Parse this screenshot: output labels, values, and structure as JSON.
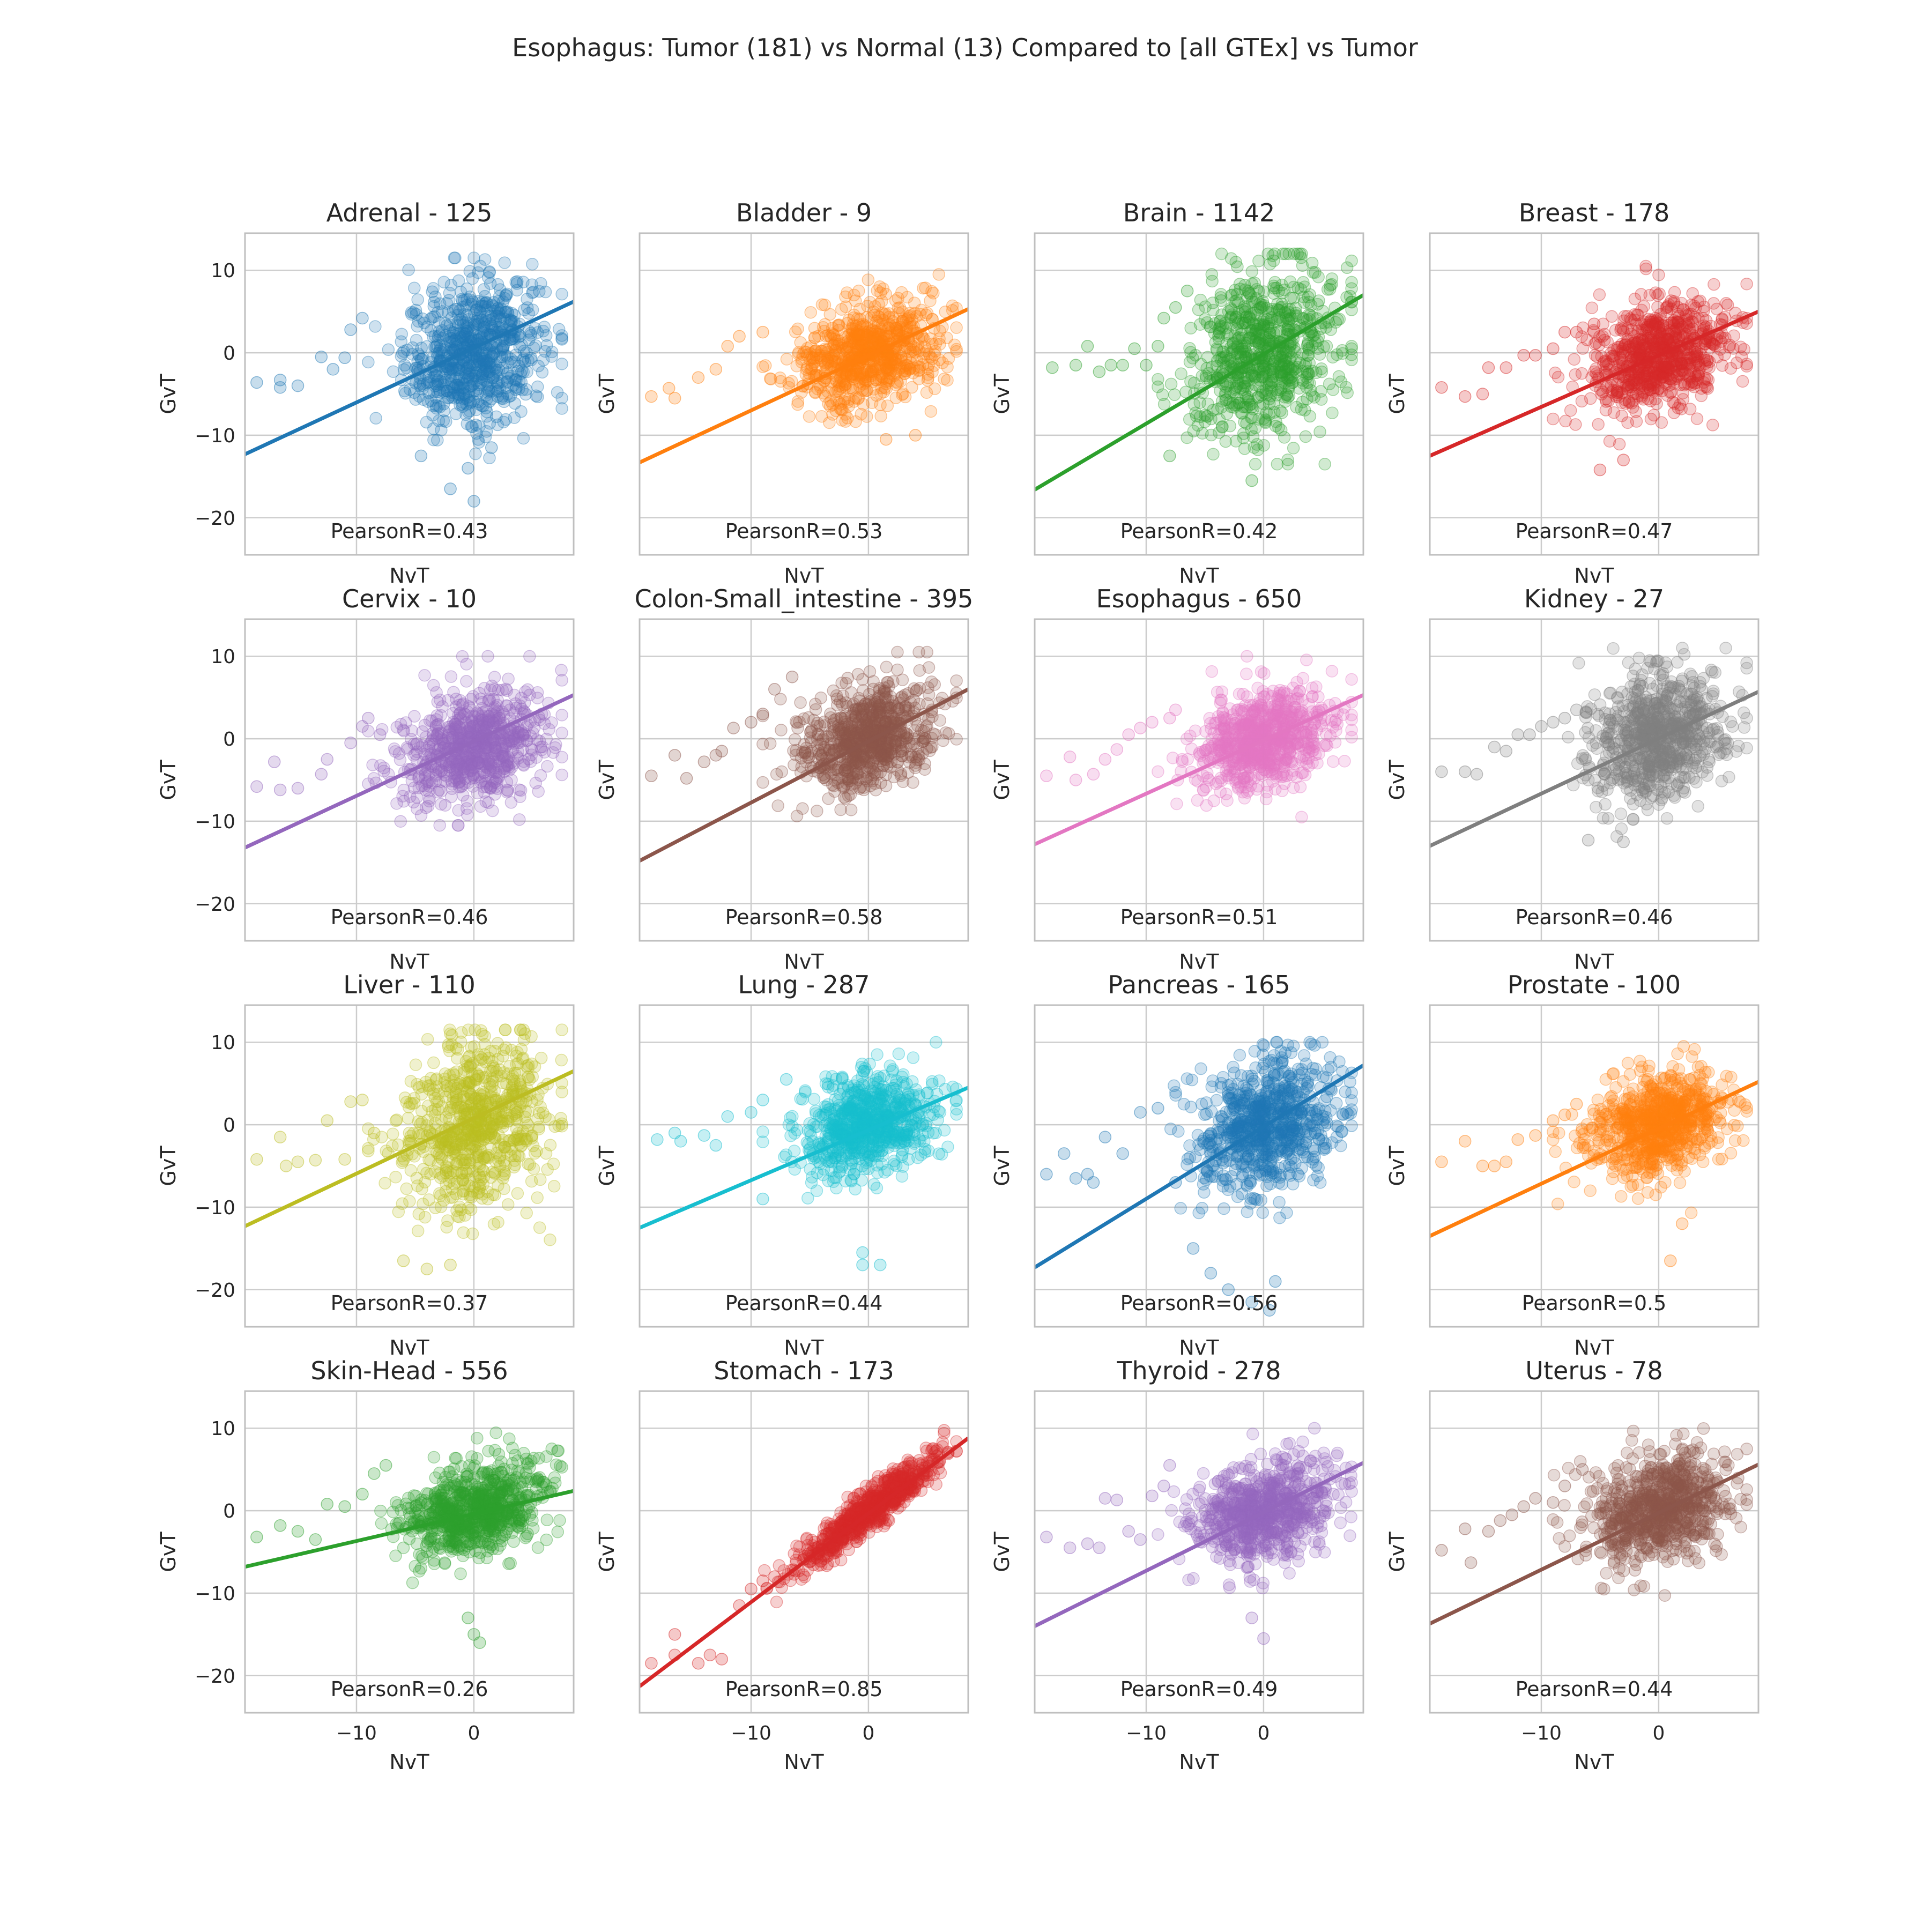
{
  "figure": {
    "title": "Esophagus: Tumor (181) vs Normal (13) Compared to [all GTEx] vs Tumor"
  },
  "axes_common": {
    "xlabel": "NvT",
    "ylabel": "GvT",
    "xlim": [
      -19.5,
      8.5
    ],
    "ylim": [
      -24.5,
      14.5
    ],
    "xticks": [
      -10,
      0
    ],
    "yticks": [
      -20,
      -10,
      0,
      10
    ],
    "grid": true
  },
  "chart_data": [
    {
      "type": "scatter",
      "title": "Adrenal - 125",
      "annotation": "PearsonR=0.43",
      "color": "#1f77b4",
      "regression_line": {
        "x": [
          -19.5,
          8.5
        ],
        "y": [
          -12.3,
          6.2
        ]
      },
      "cloud": {
        "cx": 0,
        "cy": 0,
        "sx": 2.9,
        "sy": 4.3,
        "ylow": -14,
        "yhigh": 11.5
      },
      "outliers": [
        [
          -18.5,
          -3.6
        ],
        [
          -16.5,
          -4.2
        ],
        [
          -16.5,
          -3.3
        ],
        [
          -15,
          -4
        ],
        [
          -13,
          -0.5
        ],
        [
          -11,
          -0.6
        ],
        [
          -12,
          -2
        ],
        [
          -10.5,
          2.8
        ],
        [
          -9.5,
          4.2
        ],
        [
          -4.5,
          -12.5
        ],
        [
          -2,
          -16.5
        ],
        [
          0,
          -18
        ],
        [
          -0.5,
          -14
        ],
        [
          1.5,
          -11.5
        ]
      ]
    },
    {
      "type": "scatter",
      "title": "Bladder - 9",
      "annotation": "PearsonR=0.53",
      "color": "#ff7f0e",
      "regression_line": {
        "x": [
          -19.5,
          8.5
        ],
        "y": [
          -13.3,
          5.3
        ]
      },
      "cloud": {
        "cx": 0,
        "cy": 0,
        "sx": 3.0,
        "sy": 3.0,
        "ylow": -9,
        "yhigh": 9.5
      },
      "outliers": [
        [
          -18.5,
          -5.3
        ],
        [
          -17,
          -4.3
        ],
        [
          -16.5,
          -5.5
        ],
        [
          -14.5,
          -3
        ],
        [
          -13,
          -2
        ],
        [
          -12,
          0.8
        ],
        [
          -11,
          2
        ],
        [
          -9,
          2.5
        ],
        [
          1.5,
          -10.5
        ],
        [
          4,
          -10
        ]
      ]
    },
    {
      "type": "scatter",
      "title": "Brain - 1142",
      "annotation": "PearsonR=0.42",
      "color": "#2ca02c",
      "regression_line": {
        "x": [
          -19.5,
          8.5
        ],
        "y": [
          -16.6,
          7.0
        ]
      },
      "cloud": {
        "cx": 0,
        "cy": 0,
        "sx": 3.0,
        "sy": 5.0,
        "ylow": -13.5,
        "yhigh": 12
      },
      "outliers": [
        [
          -18,
          -1.8
        ],
        [
          -16,
          -1.5
        ],
        [
          -15,
          0.8
        ],
        [
          -14,
          -2.3
        ],
        [
          -13,
          -1.5
        ],
        [
          -12,
          -1.5
        ],
        [
          -11,
          0.5
        ],
        [
          -10,
          -1.5
        ],
        [
          -9,
          0.8
        ],
        [
          -8.5,
          4.2
        ],
        [
          -7.5,
          5.5
        ],
        [
          -6.5,
          7.5
        ],
        [
          -8,
          -12.5
        ],
        [
          -1,
          -15.5
        ]
      ]
    },
    {
      "type": "scatter",
      "title": "Breast - 178",
      "annotation": "PearsonR=0.47",
      "color": "#d62728",
      "regression_line": {
        "x": [
          -19.5,
          8.5
        ],
        "y": [
          -12.5,
          5.0
        ]
      },
      "cloud": {
        "cx": 0,
        "cy": -0.5,
        "sx": 3.0,
        "sy": 3.3,
        "ylow": -12,
        "yhigh": 10.5
      },
      "outliers": [
        [
          -18.5,
          -4.2
        ],
        [
          -16.5,
          -5.3
        ],
        [
          -15,
          -5
        ],
        [
          -14.5,
          -1.8
        ],
        [
          -13,
          -1.8
        ],
        [
          -11.5,
          -0.3
        ],
        [
          -10.5,
          -0.3
        ],
        [
          -9,
          0.5
        ],
        [
          -8,
          2.5
        ],
        [
          -7,
          2.5
        ],
        [
          -5.5,
          3.5
        ],
        [
          -5,
          -14.2
        ],
        [
          -3,
          -13
        ]
      ]
    },
    {
      "type": "scatter",
      "title": "Cervix - 10",
      "annotation": "PearsonR=0.46",
      "color": "#9467bd",
      "regression_line": {
        "x": [
          -19.5,
          8.5
        ],
        "y": [
          -13.2,
          5.3
        ]
      },
      "cloud": {
        "cx": 0,
        "cy": -1.0,
        "sx": 3.0,
        "sy": 3.3,
        "ylow": -10.5,
        "yhigh": 10
      },
      "outliers": [
        [
          -18.5,
          -5.8
        ],
        [
          -17,
          -2.8
        ],
        [
          -16.5,
          -6.2
        ],
        [
          -15,
          -6
        ],
        [
          -13,
          -4.3
        ],
        [
          -12.5,
          -2.5
        ],
        [
          -10.5,
          -0.5
        ],
        [
          -9.5,
          1.5
        ],
        [
          -9,
          2.5
        ],
        [
          -8,
          0.5
        ]
      ]
    },
    {
      "type": "scatter",
      "title": "Colon-Small_intestine - 395",
      "annotation": "PearsonR=0.58",
      "color": "#8c564b",
      "regression_line": {
        "x": [
          -19.5,
          8.5
        ],
        "y": [
          -14.8,
          6.0
        ]
      },
      "cloud": {
        "cx": 0,
        "cy": 0,
        "sx": 2.9,
        "sy": 3.2,
        "ylow": -11,
        "yhigh": 10.5
      },
      "outliers": [
        [
          -18.5,
          -4.5
        ],
        [
          -16.5,
          -2
        ],
        [
          -15.5,
          -4.8
        ],
        [
          -14,
          -2.8
        ],
        [
          -13,
          -2
        ],
        [
          -12.5,
          -1.5
        ],
        [
          -11.5,
          1.3
        ],
        [
          -10,
          2
        ],
        [
          -9,
          3
        ],
        [
          -8,
          6
        ],
        [
          -6.5,
          7.5
        ]
      ]
    },
    {
      "type": "scatter",
      "title": "Esophagus - 650",
      "annotation": "PearsonR=0.51",
      "color": "#e377c2",
      "regression_line": {
        "x": [
          -19.5,
          8.5
        ],
        "y": [
          -12.8,
          5.3
        ]
      },
      "cloud": {
        "cx": 0,
        "cy": 0,
        "sx": 2.9,
        "sy": 3.0,
        "ylow": -9.5,
        "yhigh": 10
      },
      "outliers": [
        [
          -18.5,
          -4.5
        ],
        [
          -16.5,
          -2.2
        ],
        [
          -16,
          -5
        ],
        [
          -14.5,
          -4.3
        ],
        [
          -13.5,
          -2.5
        ],
        [
          -12.5,
          -1.3
        ],
        [
          -11.5,
          0.5
        ],
        [
          -10.5,
          1.3
        ],
        [
          -9.5,
          2
        ],
        [
          -8,
          2.5
        ],
        [
          -7.5,
          3.5
        ]
      ]
    },
    {
      "type": "scatter",
      "title": "Kidney - 27",
      "annotation": "PearsonR=0.46",
      "color": "#7f7f7f",
      "regression_line": {
        "x": [
          -19.5,
          8.5
        ],
        "y": [
          -13.0,
          5.7
        ]
      },
      "cloud": {
        "cx": 0,
        "cy": 0,
        "sx": 3.0,
        "sy": 3.8,
        "ylow": -14,
        "yhigh": 11
      },
      "outliers": [
        [
          -18.5,
          -4
        ],
        [
          -16.5,
          -4
        ],
        [
          -15.5,
          -4.3
        ],
        [
          -14,
          -1
        ],
        [
          -13,
          -1.5
        ],
        [
          -12,
          0.5
        ],
        [
          -11,
          0.5
        ],
        [
          -10,
          1.5
        ],
        [
          -9,
          2
        ],
        [
          -8,
          2.5
        ],
        [
          -7,
          3.5
        ],
        [
          -6,
          -12.3
        ],
        [
          -3,
          -12.5
        ]
      ]
    },
    {
      "type": "scatter",
      "title": "Liver - 110",
      "annotation": "PearsonR=0.37",
      "color": "#bcbd22",
      "regression_line": {
        "x": [
          -19.5,
          8.5
        ],
        "y": [
          -12.3,
          6.5
        ]
      },
      "cloud": {
        "cx": 0,
        "cy": 0,
        "sx": 3.0,
        "sy": 5.2,
        "ylow": -17.5,
        "yhigh": 11.5
      },
      "outliers": [
        [
          -18.5,
          -4.2
        ],
        [
          -16.5,
          -1.5
        ],
        [
          -16,
          -5
        ],
        [
          -15,
          -4.5
        ],
        [
          -13.5,
          -4.3
        ],
        [
          -12.5,
          0.5
        ],
        [
          -11,
          -4.2
        ],
        [
          -10.5,
          2.8
        ],
        [
          -9.5,
          3
        ],
        [
          -8.5,
          -1
        ],
        [
          -6,
          -16.5
        ],
        [
          -4,
          -17.5
        ],
        [
          -2,
          -17
        ]
      ]
    },
    {
      "type": "scatter",
      "title": "Lung - 287",
      "annotation": "PearsonR=0.44",
      "color": "#17becf",
      "regression_line": {
        "x": [
          -19.5,
          8.5
        ],
        "y": [
          -12.5,
          4.5
        ]
      },
      "cloud": {
        "cx": 0,
        "cy": 0,
        "sx": 2.9,
        "sy": 3.0,
        "ylow": -11,
        "yhigh": 10
      },
      "outliers": [
        [
          -18,
          -1.8
        ],
        [
          -16.5,
          -1
        ],
        [
          -16,
          -2
        ],
        [
          -14,
          -1.3
        ],
        [
          -13,
          -2.5
        ],
        [
          -12,
          1
        ],
        [
          -10,
          1.5
        ],
        [
          -9,
          3
        ],
        [
          -9,
          -9
        ],
        [
          -7,
          5.5
        ],
        [
          -0.5,
          -15.5
        ],
        [
          -0.5,
          -17
        ],
        [
          1,
          -17
        ]
      ]
    },
    {
      "type": "scatter",
      "title": "Pancreas - 165",
      "annotation": "PearsonR=0.56",
      "color": "#1f77b4",
      "regression_line": {
        "x": [
          -19.5,
          8.5
        ],
        "y": [
          -17.3,
          7.2
        ]
      },
      "cloud": {
        "cx": 0,
        "cy": 0,
        "sx": 3.0,
        "sy": 3.8,
        "ylow": -15,
        "yhigh": 10
      },
      "outliers": [
        [
          -18.5,
          -6
        ],
        [
          -17,
          -3.5
        ],
        [
          -16,
          -6.5
        ],
        [
          -15,
          -6
        ],
        [
          -14.5,
          -7
        ],
        [
          -13.5,
          -1.5
        ],
        [
          -12,
          -3.5
        ],
        [
          -10.5,
          1.5
        ],
        [
          -9,
          2
        ],
        [
          -7.5,
          -7
        ],
        [
          -6,
          -15
        ],
        [
          -4.5,
          -18
        ],
        [
          -3,
          -20
        ],
        [
          -1,
          -21.5
        ],
        [
          1,
          -19
        ],
        [
          0.5,
          -22.5
        ]
      ]
    },
    {
      "type": "scatter",
      "title": "Prostate - 100",
      "annotation": "PearsonR=0.5",
      "color": "#ff7f0e",
      "regression_line": {
        "x": [
          -19.5,
          8.5
        ],
        "y": [
          -13.5,
          5.2
        ]
      },
      "cloud": {
        "cx": 0,
        "cy": 0,
        "sx": 3.0,
        "sy": 3.0,
        "ylow": -12,
        "yhigh": 9.5
      },
      "outliers": [
        [
          -18.5,
          -4.5
        ],
        [
          -16.5,
          -2
        ],
        [
          -15,
          -5
        ],
        [
          -14,
          -5
        ],
        [
          -13,
          -4.5
        ],
        [
          -12,
          -1.8
        ],
        [
          -10.5,
          -1.3
        ],
        [
          -9,
          0.5
        ],
        [
          -8,
          1.2
        ],
        [
          -7,
          2.5
        ],
        [
          1,
          -16.5
        ],
        [
          2,
          -12
        ]
      ]
    },
    {
      "type": "scatter",
      "title": "Skin-Head - 556",
      "annotation": "PearsonR=0.26",
      "color": "#2ca02c",
      "regression_line": {
        "x": [
          -19.5,
          8.5
        ],
        "y": [
          -6.8,
          2.4
        ]
      },
      "cloud": {
        "cx": 0,
        "cy": 0,
        "sx": 3.0,
        "sy": 2.6,
        "ylow": -16.5,
        "yhigh": 9.5
      },
      "outliers": [
        [
          -18.5,
          -3.2
        ],
        [
          -16.5,
          -1.8
        ],
        [
          -15,
          -2.5
        ],
        [
          -13.5,
          -3.5
        ],
        [
          -12.5,
          0.8
        ],
        [
          -11,
          0.5
        ],
        [
          -9.5,
          2
        ],
        [
          -8.5,
          4.5
        ],
        [
          -7.5,
          5.5
        ],
        [
          -0.5,
          -13
        ],
        [
          0,
          -15
        ],
        [
          0.5,
          -16
        ]
      ]
    },
    {
      "type": "scatter",
      "title": "Stomach - 173",
      "annotation": "PearsonR=0.85",
      "color": "#d62728",
      "regression_line": {
        "x": [
          -19.5,
          8.5
        ],
        "y": [
          -21.3,
          8.8
        ]
      },
      "cloud": {
        "cx": 0,
        "cy": 0,
        "sx": 3.0,
        "sy": 1.2,
        "slope": 1.08,
        "ylow": -20,
        "yhigh": 10.5
      },
      "outliers": [
        [
          -18.5,
          -18.5
        ],
        [
          -16.5,
          -17.5
        ],
        [
          -16.5,
          -15
        ],
        [
          -14.5,
          -18.5
        ],
        [
          -13.5,
          -17.5
        ],
        [
          -12.5,
          -18
        ],
        [
          -11,
          -11.5
        ],
        [
          -10,
          -9.5
        ],
        [
          -9,
          -8.5
        ],
        [
          -8,
          -8
        ]
      ]
    },
    {
      "type": "scatter",
      "title": "Thyroid - 278",
      "annotation": "PearsonR=0.49",
      "color": "#9467bd",
      "regression_line": {
        "x": [
          -19.5,
          8.5
        ],
        "y": [
          -14.0,
          5.8
        ]
      },
      "cloud": {
        "cx": 0,
        "cy": 0,
        "sx": 2.9,
        "sy": 3.0,
        "ylow": -15,
        "yhigh": 10
      },
      "outliers": [
        [
          -18.5,
          -3.2
        ],
        [
          -16.5,
          -4.5
        ],
        [
          -15,
          -4
        ],
        [
          -14,
          -4.5
        ],
        [
          -13.5,
          1.5
        ],
        [
          -12.5,
          1.3
        ],
        [
          -11.5,
          -2.5
        ],
        [
          -10.5,
          -3.5
        ],
        [
          -9.5,
          1.8
        ],
        [
          -8.5,
          3
        ],
        [
          -8,
          5.5
        ],
        [
          -1,
          -13
        ],
        [
          0,
          -15.5
        ]
      ]
    },
    {
      "type": "scatter",
      "title": "Uterus - 78",
      "annotation": "PearsonR=0.44",
      "color": "#8c564b",
      "regression_line": {
        "x": [
          -19.5,
          8.5
        ],
        "y": [
          -13.7,
          5.6
        ]
      },
      "cloud": {
        "cx": 0,
        "cy": 0,
        "sx": 3.0,
        "sy": 3.3,
        "ylow": -12,
        "yhigh": 10.5
      },
      "outliers": [
        [
          -18.5,
          -4.8
        ],
        [
          -16.5,
          -2.2
        ],
        [
          -16,
          -6.3
        ],
        [
          -14.5,
          -2.5
        ],
        [
          -13.5,
          -1.2
        ],
        [
          -12.5,
          -0.5
        ],
        [
          -11.5,
          0.5
        ],
        [
          -10.5,
          1.5
        ],
        [
          -9,
          1
        ],
        [
          -8,
          3
        ],
        [
          -6.5,
          5
        ]
      ]
    }
  ]
}
